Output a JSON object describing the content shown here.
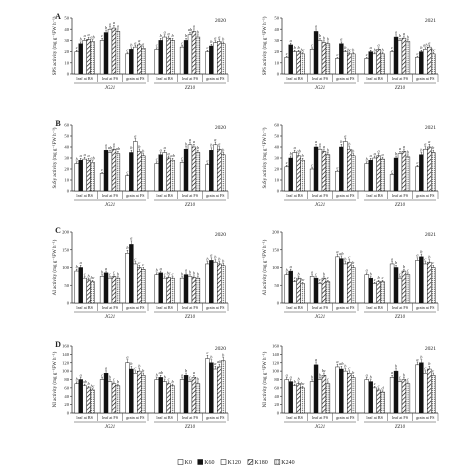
{
  "legend": [
    {
      "label": "K0",
      "fill": "white"
    },
    {
      "label": "K60",
      "fill": "black"
    },
    {
      "label": "K120",
      "fill": "white"
    },
    {
      "label": "K180",
      "fill": "hatch"
    },
    {
      "label": "K240",
      "fill": "dots"
    }
  ],
  "chart_data": [
    {
      "type": "bar",
      "panel": "A",
      "year": "2020",
      "ylabel": "SPS activity (mg g⁻¹FW h⁻¹)",
      "ylim": [
        0,
        50
      ],
      "yticks": [
        "0",
        "10",
        "20",
        "30",
        "40",
        "50"
      ],
      "categories": [
        "leaf at BS",
        "leaf at FS",
        "grain at FS",
        "leaf at BS",
        "leaf at FS",
        "grain at FS"
      ],
      "cultivars": [
        "JG21",
        "ZZ10"
      ],
      "series": [
        {
          "name": "K0",
          "values": [
            20,
            30,
            18,
            22,
            24,
            20
          ]
        },
        {
          "name": "K60",
          "values": [
            27,
            37,
            22,
            30,
            30,
            25
          ]
        },
        {
          "name": "K120",
          "values": [
            30,
            40,
            24,
            33,
            35,
            28
          ]
        },
        {
          "name": "K180",
          "values": [
            31,
            41,
            26,
            32,
            38,
            29
          ]
        },
        {
          "name": "K240",
          "values": [
            29,
            38,
            23,
            30,
            33,
            27
          ]
        }
      ],
      "letters": [
        [
          "c",
          "b",
          "a",
          "a",
          "ab"
        ],
        [
          "c",
          "b",
          "a",
          "a",
          "a"
        ],
        [
          "c",
          "b",
          "a",
          "a",
          "a"
        ],
        [
          "c",
          "b",
          "a",
          "a",
          "b"
        ],
        [
          "c",
          "b",
          "ab",
          "a",
          "b"
        ],
        [
          "c",
          "b",
          "a",
          "a",
          "b"
        ]
      ]
    },
    {
      "type": "bar",
      "panel": "",
      "year": "2021",
      "ylabel": "SPS activity (mg g⁻¹FW h⁻¹)",
      "ylim": [
        0,
        50
      ],
      "yticks": [
        "0",
        "10",
        "20",
        "30",
        "40",
        "50"
      ],
      "categories": [
        "leaf at BS",
        "leaf at FS",
        "grain at FS",
        "leaf at BS",
        "leaf at FS",
        "grain at FS"
      ],
      "cultivars": [
        "JG21",
        "ZZ10"
      ],
      "series": [
        {
          "name": "K0",
          "values": [
            15,
            22,
            14,
            14,
            20,
            15
          ]
        },
        {
          "name": "K60",
          "values": [
            26,
            38,
            27,
            20,
            33,
            20
          ]
        },
        {
          "name": "K120",
          "values": [
            20,
            30,
            20,
            18,
            30,
            22
          ]
        },
        {
          "name": "K180",
          "values": [
            20,
            28,
            18,
            22,
            32,
            24
          ]
        },
        {
          "name": "K240",
          "values": [
            18,
            27,
            18,
            18,
            29,
            18
          ]
        }
      ],
      "letters": [
        [
          "c",
          "a",
          "b",
          "b",
          "bc"
        ],
        [
          "c",
          "a",
          "b",
          "b",
          "b"
        ],
        [
          "c",
          "a",
          "b",
          "bc",
          "b"
        ],
        [
          "c",
          "a",
          "b",
          "a",
          "b"
        ],
        [
          "c",
          "a",
          "b",
          "a",
          "b"
        ],
        [
          "c",
          "b",
          "ab",
          "a",
          "bc"
        ]
      ]
    },
    {
      "type": "bar",
      "panel": "B",
      "year": "2020",
      "ylabel": "SuSy activity (mg g⁻¹FW h⁻¹)",
      "ylim": [
        0,
        60
      ],
      "yticks": [
        "0",
        "10",
        "20",
        "30",
        "40",
        "50",
        "60"
      ],
      "categories": [
        "leaf at BS",
        "leaf at FS",
        "grain at FS",
        "leaf at BS",
        "leaf at FS",
        "grain at FS"
      ],
      "cultivars": [
        "JG21",
        "ZZ10"
      ],
      "series": [
        {
          "name": "K0",
          "values": [
            25,
            16,
            14,
            25,
            26,
            24
          ]
        },
        {
          "name": "K60",
          "values": [
            28,
            37,
            35,
            33,
            38,
            37
          ]
        },
        {
          "name": "K120",
          "values": [
            29,
            35,
            45,
            35,
            42,
            42
          ]
        },
        {
          "name": "K180",
          "values": [
            28,
            38,
            36,
            30,
            40,
            38
          ]
        },
        {
          "name": "K240",
          "values": [
            26,
            34,
            32,
            28,
            35,
            33
          ]
        }
      ],
      "letters": [
        [
          "b",
          "a",
          "a",
          "a",
          "ab"
        ],
        [
          "c",
          "a",
          "ab",
          "a",
          "ab"
        ],
        [
          "c",
          "b",
          "a",
          "b",
          "b"
        ],
        [
          "c",
          "a",
          "a",
          "a",
          "ab"
        ],
        [
          "c",
          "b",
          "a",
          "a",
          "b"
        ],
        [
          "c",
          "b",
          "a",
          "a",
          "b"
        ]
      ]
    },
    {
      "type": "bar",
      "panel": "",
      "year": "2021",
      "ylabel": "SuSy activity (mg g⁻¹FW h⁻¹)",
      "ylim": [
        0,
        60
      ],
      "yticks": [
        "0",
        "10",
        "20",
        "30",
        "40",
        "50",
        "60"
      ],
      "categories": [
        "leaf at BS",
        "leaf at FS",
        "grain at FS",
        "leaf at BS",
        "leaf at FS",
        "grain at FS"
      ],
      "cultivars": [
        "JG21",
        "ZZ10"
      ],
      "series": [
        {
          "name": "K0",
          "values": [
            22,
            20,
            18,
            25,
            15,
            22
          ]
        },
        {
          "name": "K60",
          "values": [
            30,
            40,
            40,
            28,
            30,
            33
          ]
        },
        {
          "name": "K120",
          "values": [
            35,
            38,
            45,
            30,
            34,
            38
          ]
        },
        {
          "name": "K180",
          "values": [
            32,
            36,
            38,
            32,
            36,
            40
          ]
        },
        {
          "name": "K240",
          "values": [
            28,
            33,
            32,
            29,
            31,
            35
          ]
        }
      ],
      "letters": [
        [
          "c",
          "b",
          "a",
          "ab",
          "b"
        ],
        [
          "c",
          "a",
          "a",
          "a",
          "b"
        ],
        [
          "c",
          "b",
          "a",
          "b",
          "b"
        ],
        [
          "b",
          "a",
          "a",
          "a",
          "a"
        ],
        [
          "c",
          "b",
          "a",
          "a",
          "b"
        ],
        [
          "c",
          "b",
          "a",
          "a",
          "b"
        ]
      ]
    },
    {
      "type": "bar",
      "panel": "C",
      "year": "2020",
      "ylabel": "AI activity (mg g⁻¹FW h⁻¹)",
      "ylim": [
        0,
        200
      ],
      "yticks": [
        "0",
        "50",
        "100",
        "150",
        "200"
      ],
      "categories": [
        "leaf at BS",
        "leaf at FS",
        "grain at FS",
        "leaf at BS",
        "leaf at FS",
        "grain at FS"
      ],
      "cultivars": [
        "JG21",
        "ZZ10"
      ],
      "series": [
        {
          "name": "K0",
          "values": [
            90,
            75,
            140,
            80,
            70,
            110
          ]
        },
        {
          "name": "K60",
          "values": [
            100,
            85,
            165,
            85,
            80,
            120
          ]
        },
        {
          "name": "K120",
          "values": [
            70,
            70,
            110,
            70,
            75,
            115
          ]
        },
        {
          "name": "K180",
          "values": [
            65,
            75,
            100,
            72,
            72,
            110
          ]
        },
        {
          "name": "K240",
          "values": [
            60,
            70,
            95,
            70,
            70,
            105
          ]
        }
      ],
      "letters": [
        [
          "b",
          "a",
          "c",
          "b",
          "bc"
        ],
        [
          "b",
          "a",
          "c",
          "c",
          "b"
        ],
        [
          "b",
          "a",
          "c",
          "c",
          "c"
        ],
        [
          "b",
          "a",
          "c",
          "bc",
          "c"
        ],
        [
          "b",
          "a",
          "b",
          "b",
          "b"
        ],
        [
          "b",
          "a",
          "b",
          "b",
          "b"
        ]
      ]
    },
    {
      "type": "bar",
      "panel": "",
      "year": "2021",
      "ylabel": "AI activity (mg g⁻¹FW h⁻¹)",
      "ylim": [
        0,
        200
      ],
      "yticks": [
        "0",
        "50",
        "100",
        "150",
        "200"
      ],
      "categories": [
        "leaf at BS",
        "leaf at FS",
        "grain at FS",
        "leaf at BS",
        "leaf at FS",
        "grain at FS"
      ],
      "cultivars": [
        "JG21",
        "ZZ10"
      ],
      "series": [
        {
          "name": "K0",
          "values": [
            80,
            75,
            130,
            80,
            110,
            120
          ]
        },
        {
          "name": "K60",
          "values": [
            90,
            70,
            125,
            70,
            100,
            130
          ]
        },
        {
          "name": "K120",
          "values": [
            60,
            55,
            110,
            55,
            70,
            110
          ]
        },
        {
          "name": "K180",
          "values": [
            70,
            70,
            115,
            60,
            90,
            115
          ]
        },
        {
          "name": "K240",
          "values": [
            55,
            60,
            100,
            60,
            80,
            100
          ]
        }
      ],
      "letters": [
        [
          "b",
          "a",
          "c",
          "b",
          "bc"
        ],
        [
          "a",
          "c",
          "c",
          "b",
          "c"
        ],
        [
          "a",
          "ab",
          "b",
          "c",
          "b"
        ],
        [
          "a",
          "b",
          "c",
          "b",
          "c"
        ],
        [
          "a",
          "b",
          "c",
          "b",
          "c"
        ],
        [
          "a",
          "b",
          "c",
          "b",
          "c"
        ]
      ]
    },
    {
      "type": "bar",
      "panel": "D",
      "year": "2020",
      "ylabel": "NI activity (mg g⁻¹FW h⁻¹)",
      "ylim": [
        0,
        160
      ],
      "yticks": [
        "0",
        "20",
        "40",
        "60",
        "80",
        "100",
        "120",
        "140",
        "160"
      ],
      "categories": [
        "leaf at BS",
        "leaf at FS",
        "grain at FS",
        "leaf at BS",
        "leaf at FS",
        "grain at FS"
      ],
      "cultivars": [
        "JG21",
        "ZZ10"
      ],
      "series": [
        {
          "name": "K0",
          "values": [
            70,
            80,
            120,
            80,
            80,
            130
          ]
        },
        {
          "name": "K60",
          "values": [
            80,
            95,
            105,
            85,
            90,
            120
          ]
        },
        {
          "name": "K120",
          "values": [
            65,
            75,
            95,
            75,
            75,
            105
          ]
        },
        {
          "name": "K180",
          "values": [
            60,
            70,
            100,
            70,
            85,
            110
          ]
        },
        {
          "name": "K240",
          "values": [
            55,
            65,
            90,
            65,
            70,
            125
          ]
        }
      ],
      "letters": [
        [
          "b",
          "a",
          "ab",
          "b",
          "bc"
        ],
        [
          "c",
          "a",
          "b",
          "c",
          "b"
        ],
        [
          "a",
          "b",
          "c",
          "b",
          "b"
        ],
        [
          "b",
          "ab",
          "b",
          "c",
          "b"
        ],
        [
          "a",
          "b",
          "c",
          "a",
          "b"
        ],
        [
          "c",
          "b",
          "a",
          "ab",
          "b"
        ]
      ]
    },
    {
      "type": "bar",
      "panel": "",
      "year": "2021",
      "ylabel": "NI activity (mg g⁻¹FW h⁻¹)",
      "ylim": [
        0,
        160
      ],
      "yticks": [
        "0",
        "20",
        "40",
        "60",
        "80",
        "100",
        "120",
        "140",
        "160"
      ],
      "categories": [
        "leaf at BS",
        "leaf at FS",
        "grain at FS",
        "leaf at BS",
        "leaf at FS",
        "grain at FS"
      ],
      "cultivars": [
        "JG21",
        "ZZ10"
      ],
      "series": [
        {
          "name": "K0",
          "values": [
            80,
            75,
            110,
            80,
            85,
            115
          ]
        },
        {
          "name": "K60",
          "values": [
            75,
            115,
            105,
            75,
            100,
            120
          ]
        },
        {
          "name": "K120",
          "values": [
            65,
            80,
            100,
            60,
            75,
            95
          ]
        },
        {
          "name": "K180",
          "values": [
            70,
            90,
            95,
            55,
            80,
            105
          ]
        },
        {
          "name": "K240",
          "values": [
            60,
            70,
            85,
            50,
            70,
            90
          ]
        }
      ],
      "letters": [
        [
          "a",
          "a",
          "b",
          "b",
          "bc"
        ],
        [
          "b",
          "a",
          "b",
          "bc",
          "c"
        ],
        [
          "a",
          "ab",
          "b",
          "c",
          "b"
        ],
        [
          "a",
          "b",
          "c",
          "c",
          "d"
        ],
        [
          "a",
          "b",
          "c",
          "b",
          "c"
        ],
        [
          "a",
          "b",
          "c",
          "b",
          "c"
        ]
      ]
    }
  ]
}
